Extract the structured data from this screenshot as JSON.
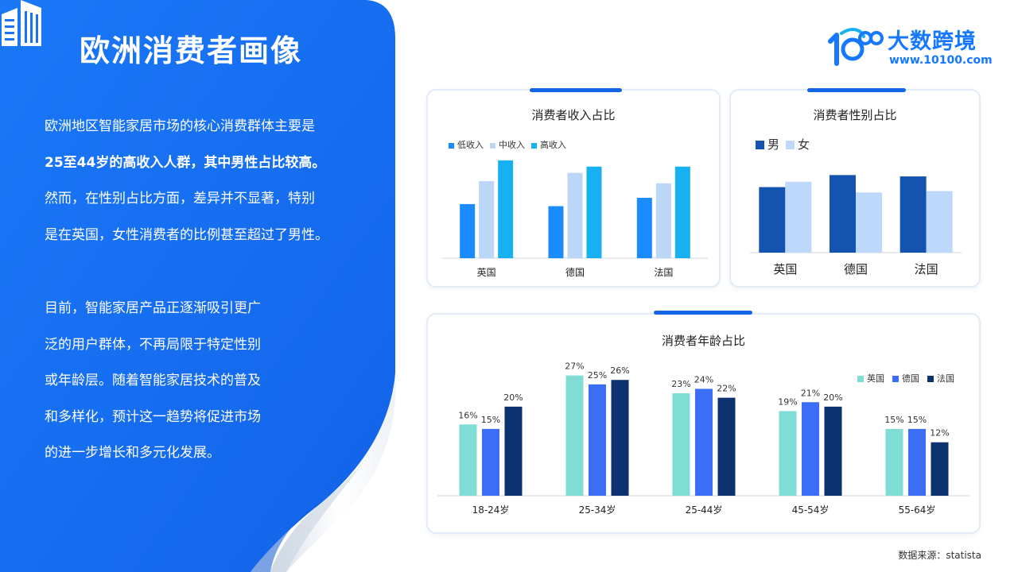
{
  "page": {
    "title": "欧洲消费者画像",
    "paragraph1": [
      {
        "text": "欧洲地区智能家居市场的核心消费群体主要是",
        "bold": false
      },
      {
        "text": "25至44岁的高收入人群，其中男性占比较高。",
        "bold": true
      },
      {
        "text": "然而，在性别占比方面，差异并不显著，特别",
        "bold": false
      },
      {
        "text": "是在英国，女性消费者的比例甚至超过了男性。",
        "bold": false
      }
    ],
    "paragraph2": [
      {
        "text": "目前，智能家居产品正逐渐吸引更广",
        "bold": false
      },
      {
        "text": "泛的用户群体，不再局限于特定性别",
        "bold": false
      },
      {
        "text": "或年龄层。随着智能家居技术的普及",
        "bold": false
      },
      {
        "text": "和多样化，预计这一趋势将促进市场",
        "bold": false
      },
      {
        "text": "的进一步增长和多元化发展。",
        "bold": false
      }
    ],
    "source": "数据来源：statista"
  },
  "logo": {
    "name": "大数跨境",
    "url": "www.10100.com",
    "icon": "10100-logo-icon"
  },
  "colors": {
    "panel_blue": "#1a73f5",
    "low_income": "#1a8cff",
    "mid_income": "#bcd6f7",
    "high_income": "#17b0f0",
    "male": "#1553b0",
    "female": "#bdd8fb",
    "uk": "#7fddd6",
    "de": "#3b6ef5",
    "fr": "#0d3270"
  },
  "chart_data": [
    {
      "id": "income",
      "type": "bar",
      "title": "消费者收入占比",
      "categories": [
        "英国",
        "德国",
        "法国"
      ],
      "series": [
        {
          "name": "低收入",
          "values": [
            26,
            25,
            29
          ]
        },
        {
          "name": "中收入",
          "values": [
            37,
            41,
            36
          ]
        },
        {
          "name": "高收入",
          "values": [
            47,
            44,
            44
          ]
        }
      ],
      "ylim": [
        0,
        50
      ],
      "legend": "top-left",
      "grid": false
    },
    {
      "id": "gender",
      "type": "bar",
      "title": "消费者性别占比",
      "categories": [
        "英国",
        "德国",
        "法国"
      ],
      "series": [
        {
          "name": "男",
          "values": [
            49,
            58,
            57
          ]
        },
        {
          "name": "女",
          "values": [
            53,
            45,
            46
          ]
        }
      ],
      "ylim": [
        0,
        60
      ],
      "legend": "top-left",
      "grid": false
    },
    {
      "id": "age",
      "type": "bar",
      "title": "消费者年龄占比",
      "categories": [
        "18-24岁",
        "25-34岁",
        "25-44岁",
        "45-54岁",
        "55-64岁"
      ],
      "series": [
        {
          "name": "英国",
          "values": [
            16,
            27,
            23,
            19,
            15
          ]
        },
        {
          "name": "德国",
          "values": [
            15,
            25,
            24,
            21,
            15
          ]
        },
        {
          "name": "法国",
          "values": [
            20,
            26,
            22,
            20,
            12
          ]
        }
      ],
      "value_format": "%",
      "ylim": [
        0,
        28
      ],
      "legend": "top-right",
      "grid": false
    }
  ]
}
